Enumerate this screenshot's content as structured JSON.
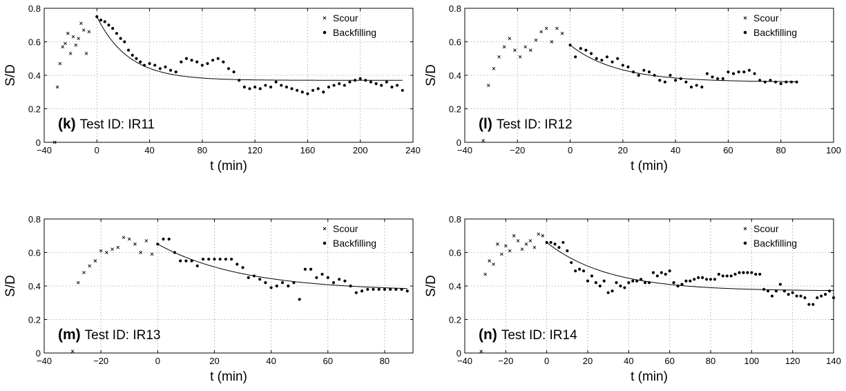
{
  "chart_data": [
    {
      "type": "scatter",
      "panel_label": "(k)",
      "test_id": "Test ID: IR11",
      "xlabel": "t (min)",
      "ylabel": "S/D",
      "xlim": [
        -40,
        240
      ],
      "ylim": [
        0,
        0.8
      ],
      "xticks": [
        -40,
        0,
        40,
        80,
        120,
        160,
        200,
        240
      ],
      "yticks": [
        0,
        0.2,
        0.4,
        0.6,
        0.8
      ],
      "grid": true,
      "legend_position": "top-right",
      "series": [
        {
          "name": "Scour",
          "marker": "x",
          "x": [
            -32,
            -30,
            -28,
            -26,
            -24,
            -22,
            -20,
            -18,
            -16,
            -14,
            -12,
            -10,
            -8,
            -6
          ],
          "y": [
            0.0,
            0.33,
            0.47,
            0.57,
            0.59,
            0.65,
            0.53,
            0.63,
            0.58,
            0.62,
            0.71,
            0.67,
            0.53,
            0.66
          ]
        },
        {
          "name": "Backfilling",
          "marker": "dot",
          "x": [
            0,
            3,
            6,
            9,
            12,
            15,
            18,
            21,
            24,
            27,
            30,
            33,
            36,
            40,
            44,
            48,
            52,
            56,
            60,
            64,
            68,
            72,
            76,
            80,
            84,
            88,
            92,
            96,
            100,
            104,
            108,
            112,
            116,
            120,
            124,
            128,
            132,
            136,
            140,
            144,
            148,
            152,
            156,
            160,
            164,
            168,
            172,
            176,
            180,
            184,
            188,
            192,
            196,
            200,
            204,
            208,
            212,
            216,
            220,
            224,
            228,
            232
          ],
          "y": [
            0.75,
            0.73,
            0.72,
            0.7,
            0.68,
            0.65,
            0.62,
            0.6,
            0.55,
            0.52,
            0.5,
            0.48,
            0.46,
            0.47,
            0.46,
            0.44,
            0.45,
            0.43,
            0.42,
            0.48,
            0.5,
            0.49,
            0.48,
            0.46,
            0.47,
            0.49,
            0.5,
            0.48,
            0.44,
            0.42,
            0.37,
            0.33,
            0.32,
            0.33,
            0.32,
            0.34,
            0.33,
            0.36,
            0.34,
            0.33,
            0.32,
            0.31,
            0.3,
            0.29,
            0.31,
            0.32,
            0.3,
            0.33,
            0.34,
            0.35,
            0.34,
            0.36,
            0.37,
            0.38,
            0.37,
            0.36,
            0.35,
            0.34,
            0.36,
            0.33,
            0.34,
            0.31
          ]
        },
        {
          "name": "",
          "marker": "line",
          "fit": {
            "a": 0.37,
            "b": 0.38,
            "tau": 24,
            "x0": 0,
            "x1": 232
          }
        }
      ]
    },
    {
      "type": "scatter",
      "panel_label": "(l)",
      "test_id": "Test ID: IR12",
      "xlabel": "t (min)",
      "ylabel": "S/D",
      "xlim": [
        -40,
        100
      ],
      "ylim": [
        0,
        0.8
      ],
      "xticks": [
        -40,
        -20,
        0,
        20,
        40,
        60,
        80,
        100
      ],
      "yticks": [
        0,
        0.2,
        0.4,
        0.6,
        0.8
      ],
      "grid": true,
      "legend_position": "top-right",
      "series": [
        {
          "name": "Scour",
          "marker": "x",
          "x": [
            -33,
            -31,
            -29,
            -27,
            -25,
            -23,
            -21,
            -19,
            -17,
            -15,
            -13,
            -11,
            -9,
            -7,
            -5,
            -3
          ],
          "y": [
            0.01,
            0.34,
            0.44,
            0.51,
            0.57,
            0.62,
            0.55,
            0.51,
            0.57,
            0.55,
            0.61,
            0.66,
            0.68,
            0.6,
            0.68,
            0.65
          ]
        },
        {
          "name": "Backfilling",
          "marker": "dot",
          "x": [
            0,
            2,
            4,
            6,
            8,
            10,
            12,
            14,
            16,
            18,
            20,
            22,
            24,
            26,
            28,
            30,
            32,
            34,
            36,
            38,
            40,
            42,
            44,
            46,
            48,
            50,
            52,
            54,
            56,
            58,
            60,
            62,
            64,
            66,
            68,
            70,
            72,
            74,
            76,
            78,
            80,
            82,
            84,
            86
          ],
          "y": [
            0.58,
            0.51,
            0.56,
            0.55,
            0.53,
            0.5,
            0.49,
            0.51,
            0.48,
            0.5,
            0.46,
            0.45,
            0.42,
            0.4,
            0.43,
            0.42,
            0.4,
            0.37,
            0.36,
            0.4,
            0.37,
            0.38,
            0.36,
            0.33,
            0.34,
            0.33,
            0.41,
            0.39,
            0.38,
            0.38,
            0.42,
            0.41,
            0.42,
            0.42,
            0.43,
            0.41,
            0.37,
            0.36,
            0.37,
            0.36,
            0.35,
            0.36,
            0.36,
            0.36
          ]
        },
        {
          "name": "",
          "marker": "line",
          "fit": {
            "a": 0.36,
            "b": 0.22,
            "tau": 18,
            "x0": 0,
            "x1": 86
          }
        }
      ]
    },
    {
      "type": "scatter",
      "panel_label": "(m)",
      "test_id": "Test ID: IR13",
      "xlabel": "t (min)",
      "ylabel": "S/D",
      "xlim": [
        -40,
        90
      ],
      "ylim": [
        0,
        0.8
      ],
      "xticks": [
        -40,
        -20,
        0,
        20,
        40,
        60,
        80
      ],
      "yticks": [
        0,
        0.2,
        0.4,
        0.6,
        0.8
      ],
      "grid": true,
      "legend_position": "top-right",
      "series": [
        {
          "name": "Scour",
          "marker": "x",
          "x": [
            -30,
            -28,
            -26,
            -24,
            -22,
            -20,
            -18,
            -16,
            -14,
            -12,
            -10,
            -8,
            -6,
            -4,
            -2
          ],
          "y": [
            0.01,
            0.42,
            0.48,
            0.52,
            0.55,
            0.61,
            0.6,
            0.62,
            0.63,
            0.69,
            0.68,
            0.65,
            0.6,
            0.67,
            0.59
          ]
        },
        {
          "name": "Backfilling",
          "marker": "dot",
          "x": [
            0,
            2,
            4,
            6,
            8,
            10,
            12,
            14,
            16,
            18,
            20,
            22,
            24,
            26,
            28,
            30,
            32,
            34,
            36,
            38,
            40,
            42,
            44,
            46,
            48,
            50,
            52,
            54,
            56,
            58,
            60,
            62,
            64,
            66,
            68,
            70,
            72,
            74,
            76,
            78,
            80,
            82,
            84,
            86,
            88
          ],
          "y": [
            0.65,
            0.68,
            0.68,
            0.6,
            0.55,
            0.55,
            0.55,
            0.52,
            0.56,
            0.56,
            0.56,
            0.56,
            0.56,
            0.56,
            0.53,
            0.51,
            0.45,
            0.46,
            0.44,
            0.42,
            0.39,
            0.4,
            0.42,
            0.4,
            0.42,
            0.32,
            0.5,
            0.5,
            0.45,
            0.47,
            0.45,
            0.42,
            0.44,
            0.43,
            0.4,
            0.36,
            0.37,
            0.38,
            0.38,
            0.38,
            0.38,
            0.38,
            0.38,
            0.38,
            0.37
          ]
        },
        {
          "name": "",
          "marker": "line",
          "fit": {
            "a": 0.37,
            "b": 0.28,
            "tau": 30,
            "x0": 0,
            "x1": 88
          }
        }
      ]
    },
    {
      "type": "scatter",
      "panel_label": "(n)",
      "test_id": "Test ID: IR14",
      "xlabel": "t (min)",
      "ylabel": "S/D",
      "xlim": [
        -40,
        140
      ],
      "ylim": [
        0,
        0.8
      ],
      "xticks": [
        -40,
        -20,
        0,
        20,
        40,
        60,
        80,
        100,
        120,
        140
      ],
      "yticks": [
        0,
        0.2,
        0.4,
        0.6,
        0.8
      ],
      "grid": true,
      "legend_position": "top-right",
      "series": [
        {
          "name": "Scour",
          "marker": "x",
          "x": [
            -32,
            -30,
            -28,
            -26,
            -24,
            -22,
            -20,
            -18,
            -16,
            -14,
            -12,
            -10,
            -8,
            -6,
            -4,
            -2
          ],
          "y": [
            0.01,
            0.47,
            0.55,
            0.53,
            0.65,
            0.59,
            0.64,
            0.61,
            0.7,
            0.67,
            0.62,
            0.65,
            0.67,
            0.63,
            0.71,
            0.7
          ]
        },
        {
          "name": "Backfilling",
          "marker": "dot",
          "x": [
            0,
            2,
            4,
            6,
            8,
            10,
            12,
            14,
            16,
            18,
            20,
            22,
            24,
            26,
            28,
            30,
            32,
            34,
            36,
            38,
            40,
            42,
            44,
            46,
            48,
            50,
            52,
            54,
            56,
            58,
            60,
            62,
            64,
            66,
            68,
            70,
            72,
            74,
            76,
            78,
            80,
            82,
            84,
            86,
            88,
            90,
            92,
            94,
            96,
            98,
            100,
            102,
            104,
            106,
            108,
            110,
            112,
            114,
            116,
            118,
            120,
            122,
            124,
            126,
            128,
            130,
            132,
            134,
            136,
            138,
            140
          ],
          "y": [
            0.66,
            0.66,
            0.65,
            0.63,
            0.66,
            0.61,
            0.54,
            0.49,
            0.5,
            0.49,
            0.43,
            0.46,
            0.42,
            0.4,
            0.43,
            0.36,
            0.37,
            0.42,
            0.4,
            0.39,
            0.42,
            0.43,
            0.43,
            0.44,
            0.42,
            0.42,
            0.48,
            0.46,
            0.48,
            0.47,
            0.49,
            0.42,
            0.4,
            0.41,
            0.43,
            0.43,
            0.44,
            0.45,
            0.45,
            0.44,
            0.44,
            0.44,
            0.47,
            0.46,
            0.46,
            0.46,
            0.47,
            0.48,
            0.48,
            0.48,
            0.48,
            0.47,
            0.47,
            0.38,
            0.37,
            0.34,
            0.37,
            0.41,
            0.37,
            0.35,
            0.36,
            0.34,
            0.34,
            0.33,
            0.29,
            0.29,
            0.33,
            0.34,
            0.35,
            0.37,
            0.33
          ]
        },
        {
          "name": "",
          "marker": "line",
          "fit": {
            "a": 0.37,
            "b": 0.29,
            "tau": 30,
            "x0": 0,
            "x1": 140
          }
        }
      ]
    }
  ]
}
